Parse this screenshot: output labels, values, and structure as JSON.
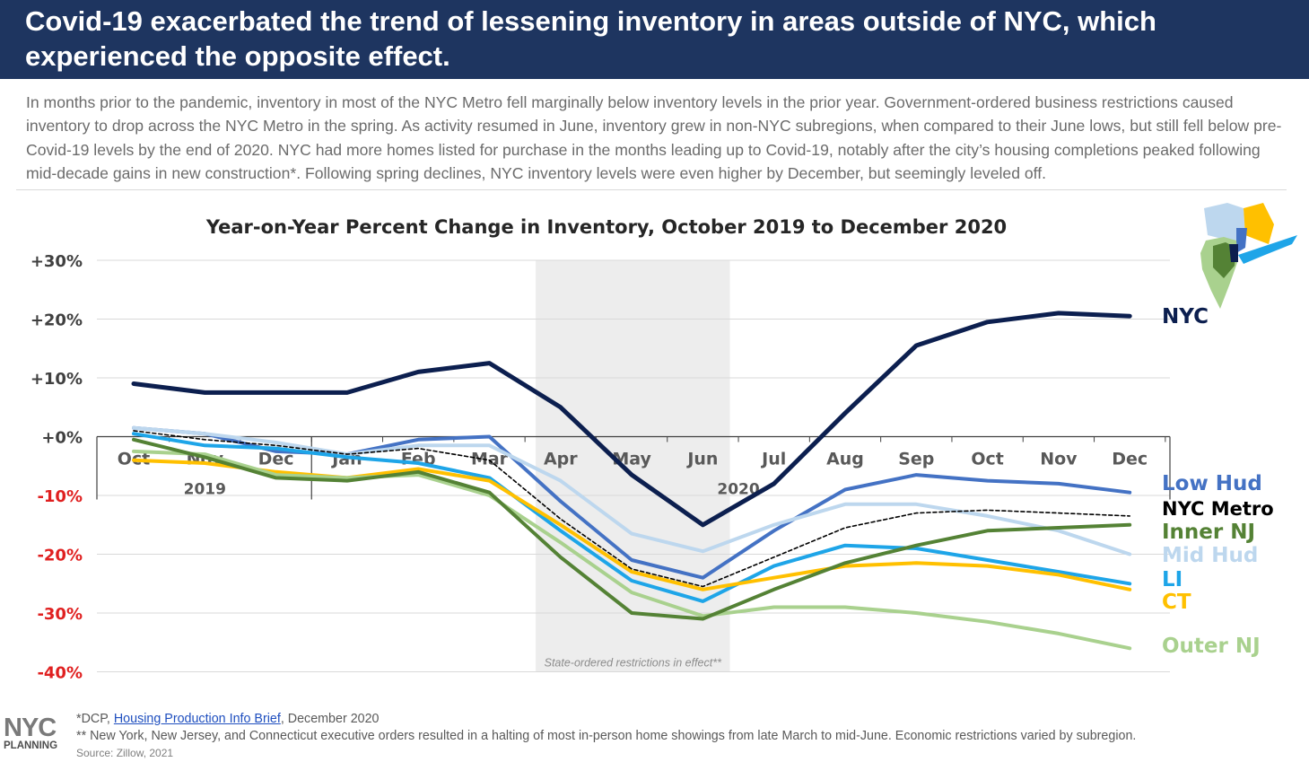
{
  "header": {
    "title": "Covid-19 exacerbated the trend of lessening inventory in areas outside of NYC, which experienced the opposite effect."
  },
  "intro": "In months prior to the pandemic, inventory in most of the NYC Metro fell marginally below inventory levels in the prior year. Government-ordered business restrictions caused inventory to drop across the NYC Metro in the spring. As activity resumed in June, inventory grew in non-NYC subregions, when compared to their June lows, but still fell below pre-Covid-19 levels by the end of 2020. NYC had more homes listed for purchase in the months leading up to Covid-19, notably after the city’s housing completions peaked following mid-decade gains in new construction*. Following spring declines, NYC inventory levels were even higher by December, but seemingly leveled off.",
  "chart_data": {
    "type": "line",
    "title": "Year-on-Year Percent Change in Inventory, October 2019 to December 2020",
    "categories": [
      "Oct",
      "Nov",
      "Dec",
      "Jan",
      "Feb",
      "Mar",
      "Apr",
      "May",
      "Jun",
      "Jul",
      "Aug",
      "Sep",
      "Oct",
      "Nov",
      "Dec"
    ],
    "year_labels": [
      {
        "label": "2019",
        "index": 1
      },
      {
        "label": "2020",
        "index": 8.5
      }
    ],
    "y_ticks": [
      30,
      20,
      10,
      0,
      -10,
      -20,
      -30,
      -40
    ],
    "y_tick_labels": [
      "+30%",
      "+20%",
      "+10%",
      "+0%",
      "-10%",
      "-20%",
      "-30%",
      "-40%"
    ],
    "ylim": [
      -40,
      30
    ],
    "grid": true,
    "shaded_region": {
      "from": "Apr",
      "to": "Jun",
      "label": "State-ordered restrictions in effect**",
      "color": "#ededed"
    },
    "series": [
      {
        "name": "Low Hud",
        "color": "#4472c4",
        "values": [
          1.5,
          0.5,
          -2.5,
          -3.0,
          -0.5,
          0.0,
          -11.0,
          -21.0,
          -24.0,
          -16.0,
          -9.0,
          -6.5,
          -7.5,
          -8.0,
          -9.5
        ]
      },
      {
        "name": "Mid Hud",
        "color": "#bdd7ee",
        "values": [
          1.5,
          0.5,
          -1.0,
          -3.0,
          -1.5,
          -1.5,
          -7.5,
          -16.5,
          -19.5,
          -15.0,
          -11.5,
          -11.5,
          -13.5,
          -16.0,
          -20.0
        ]
      },
      {
        "name": "LI",
        "color": "#1ea5e8",
        "values": [
          0.5,
          -1.5,
          -2.0,
          -3.5,
          -4.5,
          -7.0,
          -16.0,
          -24.5,
          -28.0,
          -22.0,
          -18.5,
          -19.0,
          -21.0,
          -23.0,
          -25.0
        ]
      },
      {
        "name": "CT",
        "color": "#ffc000",
        "values": [
          -4.0,
          -4.5,
          -6.0,
          -7.0,
          -5.5,
          -7.5,
          -15.0,
          -23.0,
          -26.0,
          -24.0,
          -22.0,
          -21.5,
          -22.0,
          -23.5,
          -26.0
        ]
      },
      {
        "name": "Outer NJ",
        "color": "#a9d18e",
        "values": [
          -2.5,
          -3.0,
          -6.5,
          -7.0,
          -6.5,
          -10.0,
          -18.0,
          -26.5,
          -30.5,
          -29.0,
          -29.0,
          -30.0,
          -31.5,
          -33.5,
          -36.0
        ]
      },
      {
        "name": "Inner NJ",
        "color": "#548235",
        "values": [
          -0.5,
          -3.5,
          -7.0,
          -7.5,
          -6.0,
          -9.5,
          -20.5,
          -30.0,
          -31.0,
          -26.0,
          -21.5,
          -18.5,
          -16.0,
          -15.5,
          -15.0
        ]
      },
      {
        "name": "NYC Metro",
        "color": "#000000",
        "dashed": true,
        "values": [
          1.0,
          -0.5,
          -1.5,
          -3.0,
          -2.0,
          -4.0,
          -14.0,
          -22.5,
          -25.5,
          -20.5,
          -15.5,
          -13.0,
          -12.5,
          -13.0,
          -13.5
        ]
      },
      {
        "name": "NYC",
        "color": "#0c1f4f",
        "values": [
          9.0,
          7.5,
          7.5,
          7.5,
          11.0,
          12.5,
          5.0,
          -6.5,
          -15.0,
          -8.0,
          4.0,
          15.5,
          19.5,
          21.0,
          20.5
        ]
      }
    ],
    "legend": [
      {
        "name": "NYC",
        "color": "#0c1f4f"
      },
      {
        "name": "Low Hud",
        "color": "#4472c4"
      },
      {
        "name": "NYC Metro",
        "color": "#000000"
      },
      {
        "name": "Inner NJ",
        "color": "#548235"
      },
      {
        "name": "Mid Hud",
        "color": "#bdd7ee"
      },
      {
        "name": "LI",
        "color": "#1ea5e8"
      },
      {
        "name": "CT",
        "color": "#ffc000"
      },
      {
        "name": "Outer NJ",
        "color": "#a9d18e"
      }
    ],
    "legend_placement": "right"
  },
  "footnotes": {
    "fn1_prefix": "*DCP, ",
    "fn1_link": "Housing Production Info Brief",
    "fn1_suffix": ", December 2020",
    "fn2": "** New York, New Jersey, and Connecticut executive orders resulted in a halting of most in-person home showings from late March to mid-June. Economic restrictions varied by subregion.",
    "fn3": "Source: Zillow, 2021"
  },
  "logo": {
    "top": "NYC",
    "bottom": "PLANNING"
  }
}
